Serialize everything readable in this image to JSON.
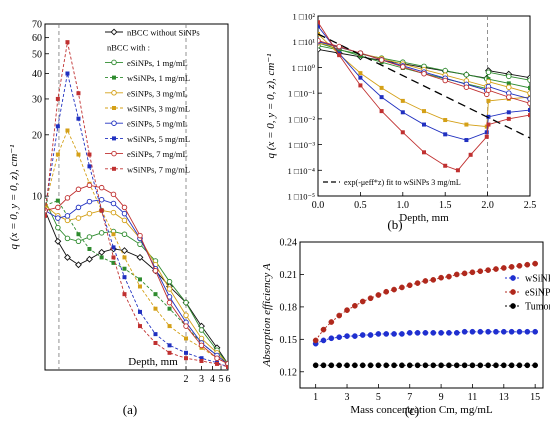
{
  "panels": {
    "a": {
      "label": "(a)"
    },
    "b": {
      "label": "(b)"
    },
    "c": {
      "label": "(c)"
    }
  },
  "chart_data": [
    {
      "id": "a",
      "type": "line",
      "xlabel": "Depth, mm",
      "ylabel": "q (x = 0, y = 0, z), cm⁻¹",
      "xscale": "log",
      "yscale": "log",
      "xlim": [
        0.05,
        6
      ],
      "ylim": [
        1.4,
        70
      ],
      "xticks": [
        {
          "v": 2,
          "label": "2"
        },
        {
          "v": 3,
          "label": "3"
        },
        {
          "v": 4,
          "label": "4"
        },
        {
          "v": 5,
          "label": "5"
        },
        {
          "v": 6,
          "label": "6"
        }
      ],
      "yticks": [
        {
          "v": 10,
          "label": "10"
        },
        {
          "v": 20,
          "label": "20"
        },
        {
          "v": 30,
          "label": "30"
        },
        {
          "v": 40,
          "label": "40"
        },
        {
          "v": 50,
          "label": "50"
        },
        {
          "v": 60,
          "label": "60"
        },
        {
          "v": 70,
          "label": "70"
        }
      ],
      "vlines": [
        0.072,
        2
      ],
      "legend_position": "top-right",
      "legend_subheader": "nBCC with :",
      "series": [
        {
          "name": "nBCC without SiNPs",
          "color": "#111111",
          "marker": "open-diamond",
          "dash": "",
          "x": [
            0.05,
            0.07,
            0.09,
            0.12,
            0.16,
            0.22,
            0.3,
            0.4,
            0.6,
            0.9,
            1.3,
            2,
            3,
            4.5,
            6
          ],
          "y": [
            8.5,
            6.0,
            5.0,
            4.6,
            4.9,
            5.3,
            5.5,
            5.4,
            5.0,
            4.3,
            3.6,
            3.0,
            2.3,
            1.8,
            1.5
          ]
        },
        {
          "name": "eSiNPs, 1 mg/mL",
          "color": "#2e8b2e",
          "marker": "open-circle",
          "dash": "",
          "x": [
            0.05,
            0.07,
            0.09,
            0.12,
            0.16,
            0.22,
            0.3,
            0.4,
            0.6,
            0.9,
            1.3,
            2,
            3,
            4.5,
            6
          ],
          "y": [
            9.5,
            7.0,
            6.2,
            6.0,
            6.3,
            6.6,
            6.7,
            6.5,
            5.8,
            4.8,
            3.8,
            3.0,
            2.2,
            1.75,
            1.5
          ]
        },
        {
          "name": "wSiNPs, 1 mg/mL",
          "color": "#2e8b2e",
          "marker": "filled-square",
          "dash": "3,2",
          "x": [
            0.05,
            0.07,
            0.09,
            0.12,
            0.16,
            0.22,
            0.3,
            0.4,
            0.6,
            0.9,
            1.3,
            2,
            3,
            4.5,
            6
          ],
          "y": [
            9.0,
            9.5,
            8.0,
            6.5,
            5.5,
            5.0,
            4.7,
            4.4,
            3.9,
            3.3,
            2.8,
            2.3,
            1.9,
            1.65,
            1.5
          ]
        },
        {
          "name": "eSiNPs, 3 mg/mL",
          "color": "#d4a017",
          "marker": "open-circle",
          "dash": "",
          "x": [
            0.05,
            0.07,
            0.09,
            0.12,
            0.16,
            0.22,
            0.3,
            0.4,
            0.6,
            0.9,
            1.3,
            2,
            3,
            4.5,
            6
          ],
          "y": [
            9.0,
            8.0,
            7.6,
            7.8,
            8.2,
            8.5,
            8.3,
            7.6,
            6.2,
            4.6,
            3.5,
            2.6,
            2.0,
            1.7,
            1.5
          ]
        },
        {
          "name": "wSiNPs, 3 mg/mL",
          "color": "#d4a017",
          "marker": "filled-square",
          "dash": "3,2",
          "x": [
            0.05,
            0.07,
            0.09,
            0.12,
            0.16,
            0.22,
            0.3,
            0.4,
            0.6,
            0.9,
            1.3,
            2,
            3,
            4.5,
            6
          ],
          "y": [
            9.0,
            16.0,
            21.0,
            16.0,
            11.5,
            8.5,
            6.5,
            5.0,
            3.6,
            2.8,
            2.3,
            2.0,
            1.8,
            1.6,
            1.5
          ]
        },
        {
          "name": "eSiNPs, 5 mg/mL",
          "color": "#2030c0",
          "marker": "open-circle",
          "dash": "",
          "x": [
            0.05,
            0.07,
            0.09,
            0.12,
            0.16,
            0.22,
            0.3,
            0.4,
            0.6,
            0.9,
            1.3,
            2,
            3,
            4.5,
            6
          ],
          "y": [
            8.5,
            7.8,
            8.0,
            8.8,
            9.4,
            9.6,
            9.2,
            8.2,
            6.2,
            4.4,
            3.2,
            2.4,
            1.9,
            1.65,
            1.5
          ]
        },
        {
          "name": "wSiNPs, 5 mg/mL",
          "color": "#2030c0",
          "marker": "filled-square",
          "dash": "3,2",
          "x": [
            0.05,
            0.07,
            0.09,
            0.12,
            0.16,
            0.22,
            0.3,
            0.4,
            0.6,
            0.9,
            1.3,
            2,
            3,
            4.5,
            6
          ],
          "y": [
            8.5,
            22.0,
            40.0,
            24.0,
            14.0,
            8.5,
            5.6,
            4.0,
            2.7,
            2.1,
            1.85,
            1.7,
            1.6,
            1.52,
            1.45
          ]
        },
        {
          "name": "eSiNPs, 7 mg/mL",
          "color": "#c03030",
          "marker": "open-circle",
          "dash": "",
          "x": [
            0.05,
            0.07,
            0.09,
            0.12,
            0.16,
            0.22,
            0.3,
            0.4,
            0.6,
            0.9,
            1.3,
            2,
            3,
            4.5,
            6
          ],
          "y": [
            8.5,
            8.8,
            9.8,
            10.8,
            11.3,
            11.0,
            10.2,
            8.8,
            6.4,
            4.3,
            3.0,
            2.3,
            1.85,
            1.6,
            1.5
          ]
        },
        {
          "name": "wSiNPs, 7 mg/mL",
          "color": "#c03030",
          "marker": "filled-square",
          "dash": "3,2",
          "x": [
            0.05,
            0.07,
            0.09,
            0.12,
            0.16,
            0.22,
            0.3,
            0.4,
            0.6,
            0.9,
            1.3,
            2,
            3,
            4.5,
            6
          ],
          "y": [
            8.0,
            30.0,
            57.0,
            32.0,
            16.0,
            8.5,
            5.0,
            3.3,
            2.3,
            1.9,
            1.7,
            1.6,
            1.55,
            1.5,
            1.45
          ]
        }
      ]
    },
    {
      "id": "b",
      "type": "line",
      "xlabel": "Depth, mm",
      "ylabel": "q (x = 0, y = 0, z), cm⁻¹",
      "yscale": "log",
      "xlim": [
        0,
        2.5
      ],
      "ylim": [
        1e-05,
        100
      ],
      "xticks": [
        {
          "v": 0,
          "label": "0.0"
        },
        {
          "v": 0.5,
          "label": "0.5"
        },
        {
          "v": 1,
          "label": "1.0"
        },
        {
          "v": 1.5,
          "label": "1.5"
        },
        {
          "v": 2,
          "label": "2.0"
        },
        {
          "v": 2.5,
          "label": "2.5"
        }
      ],
      "yticks": [
        {
          "v": 100,
          "label": "1 □10²"
        },
        {
          "v": 10,
          "label": "1 □10¹"
        },
        {
          "v": 1,
          "label": "1 □10⁰"
        },
        {
          "v": 0.1,
          "label": "1 □10⁻¹"
        },
        {
          "v": 0.01,
          "label": "1 □10⁻²"
        },
        {
          "v": 0.001,
          "label": "1 □10⁻³"
        },
        {
          "v": 0.0001,
          "label": "1 □10⁻⁴"
        },
        {
          "v": 1e-05,
          "label": "1 □10⁻⁵"
        }
      ],
      "vlines": [
        2
      ],
      "legend_position": "bottom-left",
      "series": [
        {
          "name": "nBCC without SiNPs",
          "color": "#111111",
          "marker": "open-diamond",
          "dash": "",
          "x": [
            0,
            0.25,
            0.5,
            0.75,
            1,
            1.25,
            1.5,
            1.75,
            1.99,
            2.01,
            2.25,
            2.5
          ],
          "y": [
            5,
            3.6,
            2.6,
            1.9,
            1.4,
            1.0,
            0.72,
            0.52,
            0.38,
            0.75,
            0.55,
            0.4
          ]
        },
        {
          "name": "eSiNPs, 1 mg/mL",
          "color": "#2e8b2e",
          "marker": "open-circle",
          "dash": "",
          "x": [
            0,
            0.25,
            0.5,
            0.75,
            1,
            1.25,
            1.5,
            1.75,
            1.99,
            2.01,
            2.25,
            2.5
          ],
          "y": [
            7,
            4.8,
            3.3,
            2.3,
            1.6,
            1.1,
            0.75,
            0.52,
            0.36,
            0.65,
            0.45,
            0.32
          ]
        },
        {
          "name": "wSiNPs, 1 mg/mL",
          "color": "#2e8b2e",
          "marker": "filled-square",
          "dash": "",
          "x": [
            0,
            0.25,
            0.5,
            0.75,
            1,
            1.25,
            1.5,
            1.75,
            1.99,
            2.01,
            2.25,
            2.5
          ],
          "y": [
            9,
            5,
            2.8,
            1.6,
            0.95,
            0.58,
            0.36,
            0.23,
            0.15,
            0.35,
            0.24,
            0.16
          ]
        },
        {
          "name": "eSiNPs, 3 mg/mL",
          "color": "#d4a017",
          "marker": "open-circle",
          "dash": "",
          "x": [
            0,
            0.25,
            0.5,
            0.75,
            1,
            1.25,
            1.5,
            1.75,
            1.99,
            2.01,
            2.25,
            2.5
          ],
          "y": [
            9,
            6,
            3.6,
            2.2,
            1.35,
            0.82,
            0.5,
            0.3,
            0.18,
            0.28,
            0.17,
            0.1
          ]
        },
        {
          "name": "wSiNPs, 3 mg/mL",
          "color": "#d4a017",
          "marker": "filled-square",
          "dash": "",
          "x": [
            0,
            0.25,
            0.5,
            0.75,
            1,
            1.25,
            1.5,
            1.75,
            1.99,
            2.01,
            2.25,
            2.5
          ],
          "y": [
            20,
            3.2,
            0.6,
            0.16,
            0.05,
            0.02,
            0.009,
            0.006,
            0.005,
            0.05,
            0.06,
            0.07
          ]
        },
        {
          "name": "eSiNPs, 5 mg/mL",
          "color": "#2030c0",
          "marker": "open-circle",
          "dash": "",
          "x": [
            0,
            0.25,
            0.5,
            0.75,
            1,
            1.25,
            1.5,
            1.75,
            1.99,
            2.01,
            2.25,
            2.5
          ],
          "y": [
            10,
            6.2,
            3.6,
            2.0,
            1.15,
            0.66,
            0.38,
            0.22,
            0.13,
            0.18,
            0.1,
            0.06
          ]
        },
        {
          "name": "wSiNPs, 5 mg/mL",
          "color": "#2030c0",
          "marker": "filled-square",
          "dash": "",
          "x": [
            0,
            0.25,
            0.5,
            0.75,
            1,
            1.25,
            1.5,
            1.75,
            1.99,
            2.01,
            2.25,
            2.5
          ],
          "y": [
            40,
            3.5,
            0.4,
            0.07,
            0.018,
            0.006,
            0.0025,
            0.0015,
            0.003,
            0.012,
            0.018,
            0.022
          ]
        },
        {
          "name": "eSiNPs, 7 mg/mL",
          "color": "#c03030",
          "marker": "open-circle",
          "dash": "",
          "x": [
            0,
            0.25,
            0.5,
            0.75,
            1,
            1.25,
            1.5,
            1.75,
            1.99,
            2.01,
            2.25,
            2.5
          ],
          "y": [
            11,
            6.5,
            3.6,
            1.95,
            1.05,
            0.57,
            0.31,
            0.17,
            0.09,
            0.13,
            0.07,
            0.04
          ]
        },
        {
          "name": "wSiNPs, 7 mg/mL",
          "color": "#c03030",
          "marker": "filled-square",
          "dash": "",
          "x": [
            0,
            0.25,
            0.5,
            0.75,
            1,
            1.25,
            1.5,
            1.65,
            1.8,
            1.99,
            2.01,
            2.25,
            2.5
          ],
          "y": [
            57,
            3.0,
            0.2,
            0.02,
            0.003,
            0.0005,
            0.00015,
            0.0001,
            0.0004,
            0.002,
            0.006,
            0.01,
            0.014
          ]
        },
        {
          "name": "exp(-μeff*z) fit to wSiNPs 3 mg/mL",
          "color": "#000000",
          "marker": "none",
          "dash": "8,5",
          "x": [
            0,
            2.5
          ],
          "y": [
            20,
            0.0018
          ]
        }
      ]
    },
    {
      "id": "c",
      "type": "line",
      "xlabel": "Mass concentration Cm, mg/mL",
      "ylabel": "Absorption efficiency A",
      "xlim": [
        0,
        15.5
      ],
      "ylim": [
        0.105,
        0.24
      ],
      "xticks": [
        {
          "v": 1,
          "label": "1"
        },
        {
          "v": 3,
          "label": "3"
        },
        {
          "v": 5,
          "label": "5"
        },
        {
          "v": 7,
          "label": "7"
        },
        {
          "v": 9,
          "label": "9"
        },
        {
          "v": 11,
          "label": "11"
        },
        {
          "v": 13,
          "label": "13"
        },
        {
          "v": 15,
          "label": "15"
        }
      ],
      "yticks": [
        {
          "v": 0.12,
          "label": "0.12"
        },
        {
          "v": 0.15,
          "label": "0.15"
        },
        {
          "v": 0.18,
          "label": "0.18"
        },
        {
          "v": 0.21,
          "label": "0.21"
        },
        {
          "v": 0.24,
          "label": "0.24"
        }
      ],
      "legend_position": "right",
      "series": [
        {
          "name": "wSiNP",
          "color": "#1f2fd0",
          "marker": "filled-circle",
          "dash": "2,2",
          "x": [
            1,
            1.5,
            2,
            2.5,
            3,
            3.5,
            4,
            4.5,
            5,
            5.5,
            6,
            6.5,
            7,
            7.5,
            8,
            8.5,
            9,
            9.5,
            10,
            10.5,
            11,
            11.5,
            12,
            12.5,
            13,
            13.5,
            14,
            14.5,
            15
          ],
          "y": [
            0.146,
            0.149,
            0.151,
            0.152,
            0.153,
            0.153,
            0.154,
            0.154,
            0.155,
            0.155,
            0.155,
            0.155,
            0.156,
            0.156,
            0.156,
            0.156,
            0.156,
            0.156,
            0.156,
            0.157,
            0.157,
            0.157,
            0.157,
            0.157,
            0.157,
            0.157,
            0.157,
            0.157,
            0.157
          ]
        },
        {
          "name": "eSiNP",
          "color": "#b0281c",
          "marker": "filled-circle",
          "dash": "2,2",
          "x": [
            1,
            1.5,
            2,
            2.5,
            3,
            3.5,
            4,
            4.5,
            5,
            5.5,
            6,
            6.5,
            7,
            7.5,
            8,
            8.5,
            9,
            9.5,
            10,
            10.5,
            11,
            11.5,
            12,
            12.5,
            13,
            13.5,
            14,
            14.5,
            15
          ],
          "y": [
            0.149,
            0.159,
            0.166,
            0.172,
            0.177,
            0.181,
            0.185,
            0.188,
            0.191,
            0.194,
            0.196,
            0.198,
            0.2,
            0.202,
            0.204,
            0.205,
            0.207,
            0.208,
            0.21,
            0.211,
            0.212,
            0.213,
            0.214,
            0.215,
            0.216,
            0.217,
            0.218,
            0.219,
            0.22
          ]
        },
        {
          "name": "Tumor",
          "color": "#000000",
          "marker": "filled-circle",
          "dash": "2,2",
          "x": [
            1,
            1.5,
            2,
            2.5,
            3,
            3.5,
            4,
            4.5,
            5,
            5.5,
            6,
            6.5,
            7,
            7.5,
            8,
            8.5,
            9,
            9.5,
            10,
            10.5,
            11,
            11.5,
            12,
            12.5,
            13,
            13.5,
            14,
            14.5,
            15
          ],
          "y": [
            0.126,
            0.126,
            0.126,
            0.126,
            0.126,
            0.126,
            0.126,
            0.126,
            0.126,
            0.126,
            0.126,
            0.126,
            0.126,
            0.126,
            0.126,
            0.126,
            0.126,
            0.126,
            0.126,
            0.126,
            0.126,
            0.126,
            0.126,
            0.126,
            0.126,
            0.126,
            0.126,
            0.126,
            0.126
          ]
        }
      ]
    }
  ]
}
